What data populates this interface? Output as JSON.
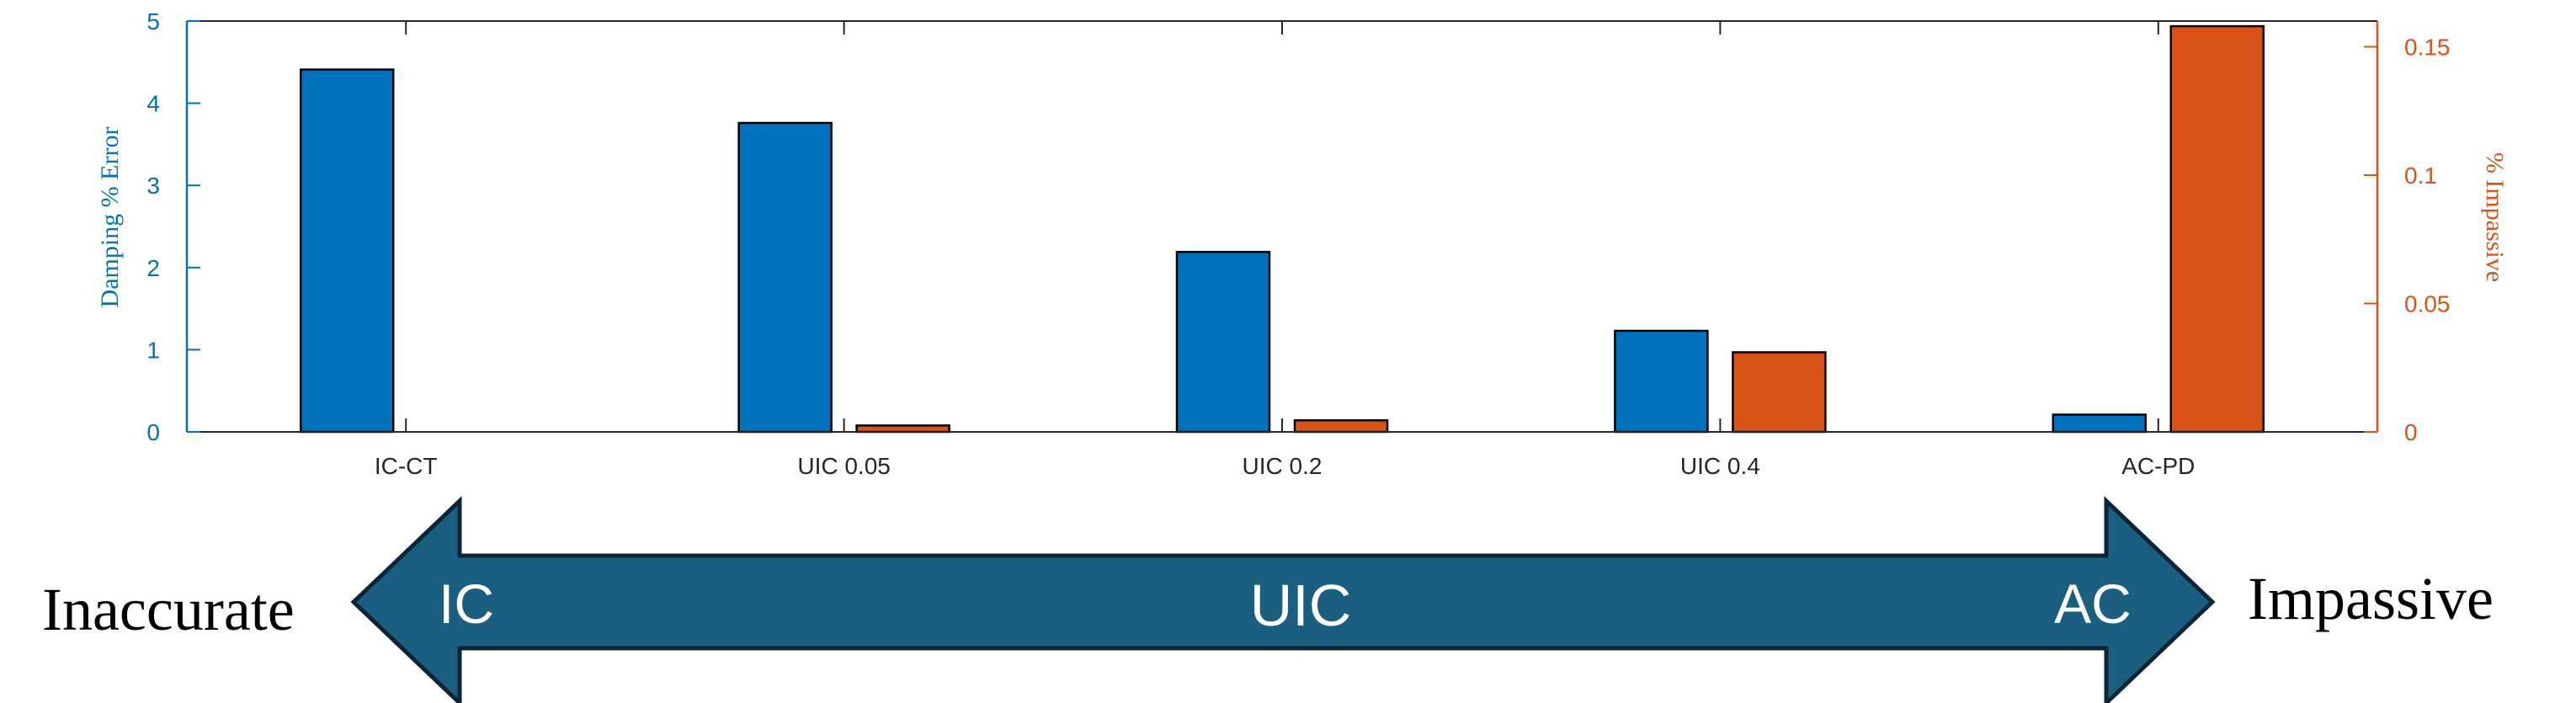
{
  "chart_data": {
    "type": "bar",
    "categories": [
      "IC-CT",
      "UIC 0.05",
      "UIC 0.2",
      "UIC 0.4",
      "AC-PD"
    ],
    "series": [
      {
        "axis": "left",
        "color": "#0072BD",
        "values": [
          4.41,
          3.76,
          2.19,
          1.23,
          0.21
        ]
      },
      {
        "axis": "right",
        "color": "#D95319",
        "values": [
          0.0,
          0.0025,
          0.0045,
          0.031,
          0.158
        ]
      }
    ],
    "ylabel_left": "Damping % Error",
    "ylabel_right": "% Impassive",
    "ylim_left": [
      0,
      5
    ],
    "ylim_right": [
      0,
      0.16
    ],
    "yticks_left": [
      "0",
      "1",
      "2",
      "3",
      "4",
      "5"
    ],
    "yticks_right": [
      "0",
      "0.05",
      "0.1",
      "0.15"
    ],
    "left_axis_color": "#0072BD",
    "right_axis_color": "#D95319",
    "grid": false
  },
  "spectrum": {
    "left_label": "Inaccurate",
    "right_label": "Impassive",
    "left_end": "IC",
    "center": "UIC",
    "right_end": "AC",
    "fill_color": "#1A5F80"
  }
}
